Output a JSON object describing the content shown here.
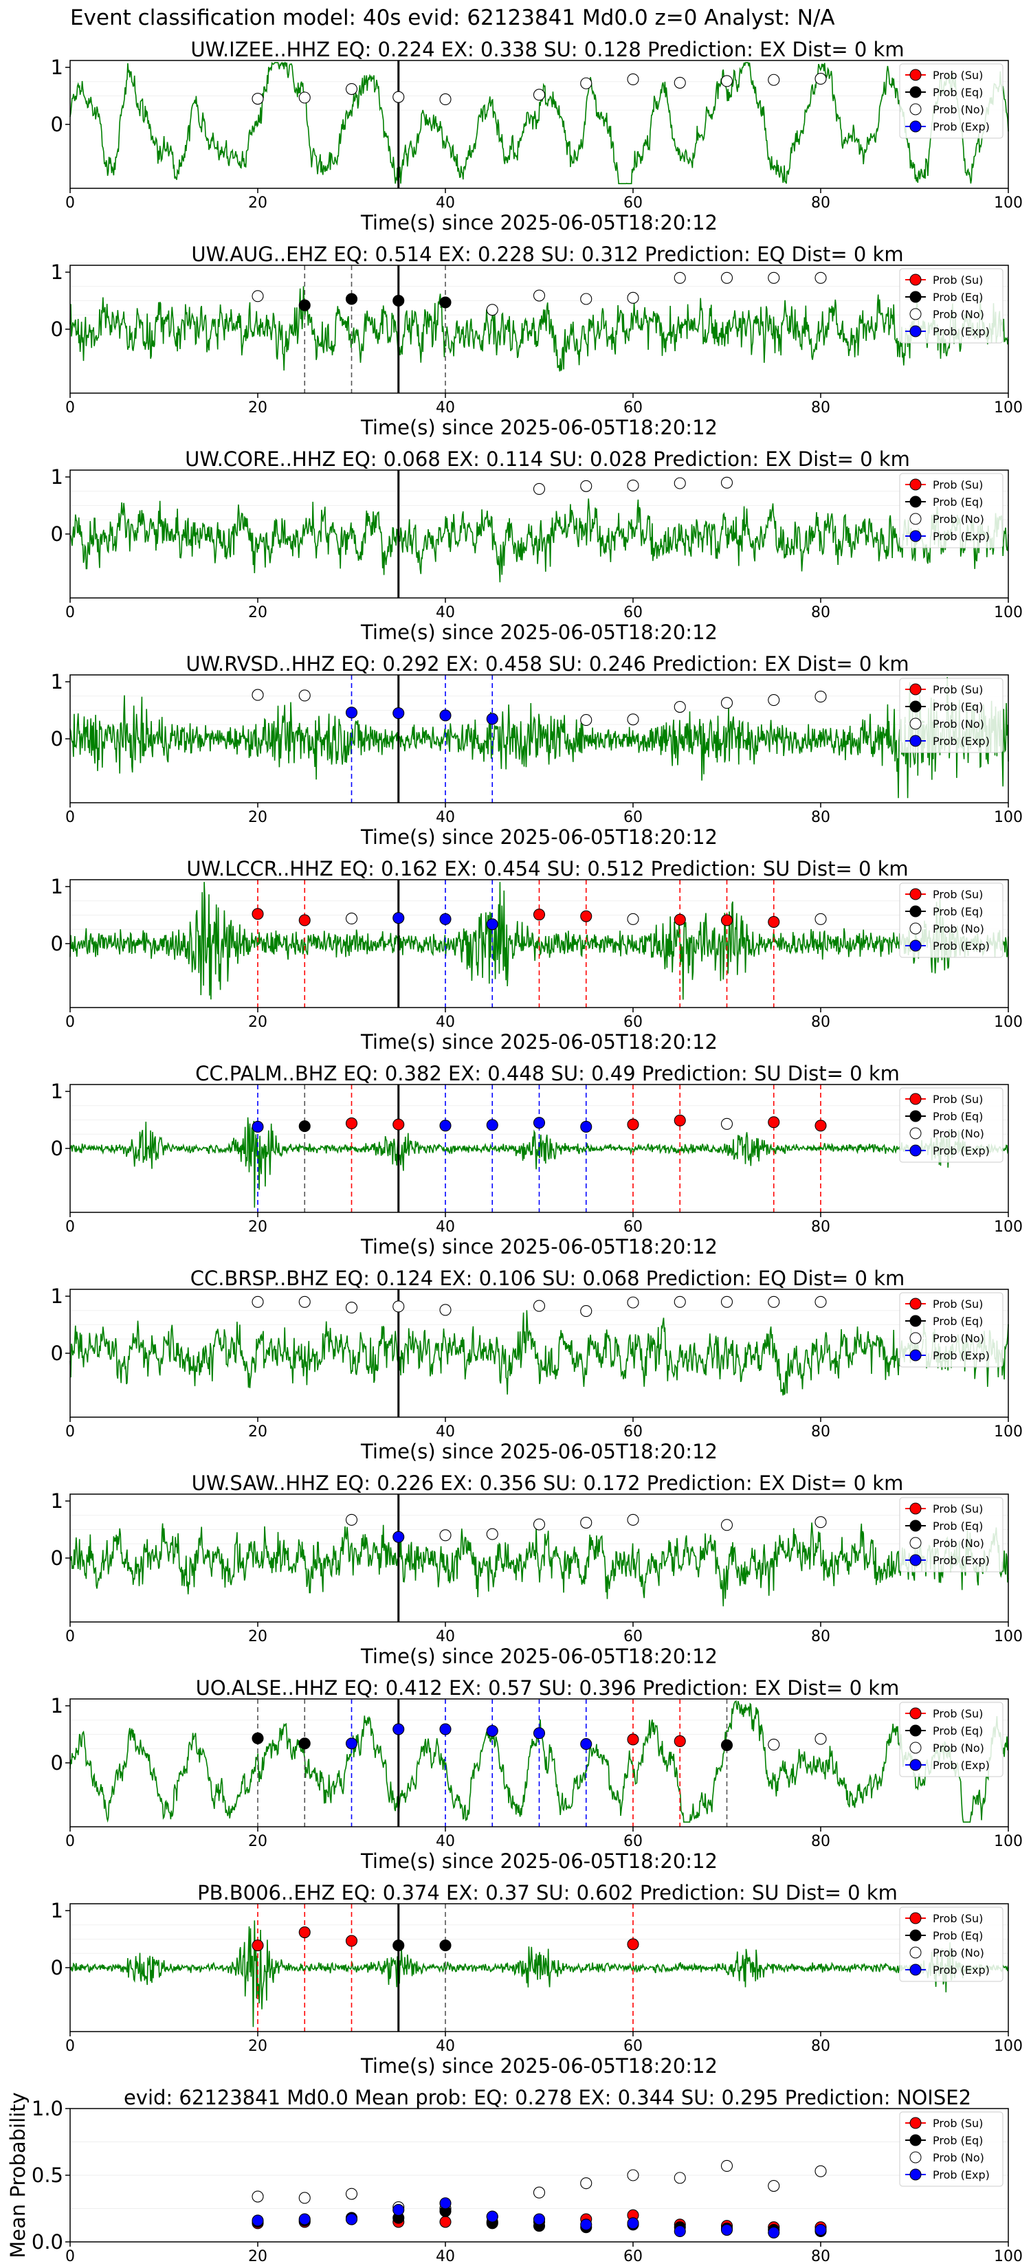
{
  "suptitle": "Event classification model: 40s evid: 62123841 Md0.0 z=0 Analyst: N/A",
  "legend_labels": [
    "Prob (Su)",
    "Prob (Eq)",
    "Prob (No)",
    "Prob (Exp)"
  ],
  "colors": {
    "trace": "#008000",
    "su": "#ff0000",
    "eq": "#000000",
    "no": "#ffffff",
    "exp": "#0000ff",
    "su_line": "#ff0000",
    "eq_line": "#555555",
    "exp_line": "#0000ff"
  },
  "chart_data": [
    {
      "type": "line",
      "title": "UW.IZEE..HHZ   EQ: 0.224  EX: 0.338  SU: 0.128   Prediction: EX    Dist= 0 km",
      "xlabel": "Time(s) since 2025-06-05T18:20:12",
      "xlim": [
        0,
        100
      ],
      "yticks": [
        "1",
        "0"
      ],
      "xticks": [
        "0",
        "20",
        "40",
        "60",
        "80",
        "100"
      ],
      "waveform": "long-period",
      "arrival_s": 35,
      "points": [
        {
          "x": 20,
          "y": 0.45,
          "cls": "no"
        },
        {
          "x": 25,
          "y": 0.47,
          "cls": "no"
        },
        {
          "x": 30,
          "y": 0.62,
          "cls": "no"
        },
        {
          "x": 35,
          "y": 0.48,
          "cls": "no"
        },
        {
          "x": 40,
          "y": 0.44,
          "cls": "no"
        },
        {
          "x": 50,
          "y": 0.52,
          "cls": "no"
        },
        {
          "x": 55,
          "y": 0.72,
          "cls": "no"
        },
        {
          "x": 60,
          "y": 0.79,
          "cls": "no"
        },
        {
          "x": 65,
          "y": 0.73,
          "cls": "no"
        },
        {
          "x": 70,
          "y": 0.76,
          "cls": "no"
        },
        {
          "x": 75,
          "y": 0.78,
          "cls": "no"
        },
        {
          "x": 80,
          "y": 0.8,
          "cls": "no"
        }
      ]
    },
    {
      "type": "line",
      "title": "UW.AUG..EHZ   EQ: 0.514  EX: 0.228  SU: 0.312   Prediction: EQ    Dist= 0 km",
      "xlabel": "Time(s) since 2025-06-05T18:20:12",
      "xlim": [
        0,
        100
      ],
      "yticks": [
        "1",
        "0"
      ],
      "xticks": [
        "0",
        "20",
        "40",
        "60",
        "80",
        "100"
      ],
      "waveform": "noisy",
      "arrival_s": 35,
      "points": [
        {
          "x": 20,
          "y": 0.58,
          "cls": "no"
        },
        {
          "x": 25,
          "y": 0.42,
          "cls": "eq"
        },
        {
          "x": 30,
          "y": 0.53,
          "cls": "eq"
        },
        {
          "x": 35,
          "y": 0.5,
          "cls": "eq"
        },
        {
          "x": 40,
          "y": 0.47,
          "cls": "eq"
        },
        {
          "x": 45,
          "y": 0.34,
          "cls": "no"
        },
        {
          "x": 50,
          "y": 0.59,
          "cls": "no"
        },
        {
          "x": 55,
          "y": 0.53,
          "cls": "no"
        },
        {
          "x": 60,
          "y": 0.55,
          "cls": "no"
        },
        {
          "x": 65,
          "y": 0.9,
          "cls": "no"
        },
        {
          "x": 70,
          "y": 0.9,
          "cls": "no"
        },
        {
          "x": 75,
          "y": 0.9,
          "cls": "no"
        },
        {
          "x": 80,
          "y": 0.9,
          "cls": "no"
        }
      ]
    },
    {
      "type": "line",
      "title": "UW.CORE..HHZ   EQ: 0.068  EX: 0.114  SU: 0.028   Prediction: EX    Dist= 0 km",
      "xlabel": "Time(s) since 2025-06-05T18:20:12",
      "xlim": [
        0,
        100
      ],
      "yticks": [
        "1",
        "0"
      ],
      "xticks": [
        "0",
        "20",
        "40",
        "60",
        "80",
        "100"
      ],
      "waveform": "noisy",
      "arrival_s": 35,
      "points": [
        {
          "x": 50,
          "y": 0.79,
          "cls": "no"
        },
        {
          "x": 55,
          "y": 0.84,
          "cls": "no"
        },
        {
          "x": 60,
          "y": 0.85,
          "cls": "no"
        },
        {
          "x": 65,
          "y": 0.89,
          "cls": "no"
        },
        {
          "x": 70,
          "y": 0.9,
          "cls": "no"
        }
      ]
    },
    {
      "type": "line",
      "title": "UW.RVSD..HHZ   EQ: 0.292  EX: 0.458  SU: 0.246   Prediction: EX    Dist= 0 km",
      "xlabel": "Time(s) since 2025-06-05T18:20:12",
      "xlim": [
        0,
        100
      ],
      "yticks": [
        "1",
        "0"
      ],
      "xticks": [
        "0",
        "20",
        "40",
        "60",
        "80",
        "100"
      ],
      "waveform": "dense",
      "arrival_s": 35,
      "points": [
        {
          "x": 20,
          "y": 0.77,
          "cls": "no"
        },
        {
          "x": 25,
          "y": 0.76,
          "cls": "no"
        },
        {
          "x": 30,
          "y": 0.46,
          "cls": "exp"
        },
        {
          "x": 35,
          "y": 0.45,
          "cls": "exp"
        },
        {
          "x": 40,
          "y": 0.41,
          "cls": "exp"
        },
        {
          "x": 45,
          "y": 0.35,
          "cls": "exp"
        },
        {
          "x": 55,
          "y": 0.33,
          "cls": "no"
        },
        {
          "x": 60,
          "y": 0.34,
          "cls": "no"
        },
        {
          "x": 65,
          "y": 0.56,
          "cls": "no"
        },
        {
          "x": 70,
          "y": 0.63,
          "cls": "no"
        },
        {
          "x": 75,
          "y": 0.68,
          "cls": "no"
        },
        {
          "x": 80,
          "y": 0.74,
          "cls": "no"
        }
      ]
    },
    {
      "type": "line",
      "title": "UW.LCCR..HHZ   EQ: 0.162  EX: 0.454  SU: 0.512   Prediction: SU    Dist= 0 km",
      "xlabel": "Time(s) since 2025-06-05T18:20:12",
      "xlim": [
        0,
        100
      ],
      "yticks": [
        "1",
        "0"
      ],
      "xticks": [
        "0",
        "20",
        "40",
        "60",
        "80",
        "100"
      ],
      "waveform": "bursty",
      "arrival_s": 35,
      "points": [
        {
          "x": 20,
          "y": 0.52,
          "cls": "su"
        },
        {
          "x": 25,
          "y": 0.41,
          "cls": "su"
        },
        {
          "x": 30,
          "y": 0.44,
          "cls": "no"
        },
        {
          "x": 35,
          "y": 0.45,
          "cls": "exp"
        },
        {
          "x": 40,
          "y": 0.43,
          "cls": "exp"
        },
        {
          "x": 45,
          "y": 0.34,
          "cls": "exp"
        },
        {
          "x": 50,
          "y": 0.51,
          "cls": "su"
        },
        {
          "x": 55,
          "y": 0.48,
          "cls": "su"
        },
        {
          "x": 60,
          "y": 0.43,
          "cls": "no"
        },
        {
          "x": 65,
          "y": 0.42,
          "cls": "su"
        },
        {
          "x": 70,
          "y": 0.41,
          "cls": "su"
        },
        {
          "x": 75,
          "y": 0.38,
          "cls": "su"
        },
        {
          "x": 80,
          "y": 0.43,
          "cls": "no"
        }
      ]
    },
    {
      "type": "line",
      "title": "CC.PALM..BHZ   EQ: 0.382  EX: 0.448  SU: 0.49   Prediction: SU    Dist= 0 km",
      "xlabel": "Time(s) since 2025-06-05T18:20:12",
      "xlim": [
        0,
        100
      ],
      "yticks": [
        "1",
        "0"
      ],
      "xticks": [
        "0",
        "20",
        "40",
        "60",
        "80",
        "100"
      ],
      "waveform": "quiet",
      "arrival_s": 35,
      "points": [
        {
          "x": 20,
          "y": 0.38,
          "cls": "exp"
        },
        {
          "x": 25,
          "y": 0.39,
          "cls": "eq"
        },
        {
          "x": 30,
          "y": 0.44,
          "cls": "su"
        },
        {
          "x": 35,
          "y": 0.42,
          "cls": "su"
        },
        {
          "x": 40,
          "y": 0.4,
          "cls": "exp"
        },
        {
          "x": 45,
          "y": 0.41,
          "cls": "exp"
        },
        {
          "x": 50,
          "y": 0.45,
          "cls": "exp"
        },
        {
          "x": 55,
          "y": 0.38,
          "cls": "exp"
        },
        {
          "x": 60,
          "y": 0.42,
          "cls": "su"
        },
        {
          "x": 65,
          "y": 0.49,
          "cls": "su"
        },
        {
          "x": 70,
          "y": 0.43,
          "cls": "no"
        },
        {
          "x": 75,
          "y": 0.46,
          "cls": "su"
        },
        {
          "x": 80,
          "y": 0.4,
          "cls": "su"
        }
      ]
    },
    {
      "type": "line",
      "title": "CC.BRSP..BHZ   EQ: 0.124  EX: 0.106  SU: 0.068   Prediction: EQ    Dist= 0 km",
      "xlabel": "Time(s) since 2025-06-05T18:20:12",
      "xlim": [
        0,
        100
      ],
      "yticks": [
        "1",
        "0"
      ],
      "xticks": [
        "0",
        "20",
        "40",
        "60",
        "80",
        "100"
      ],
      "waveform": "noisy",
      "arrival_s": 35,
      "points": [
        {
          "x": 20,
          "y": 0.9,
          "cls": "no"
        },
        {
          "x": 25,
          "y": 0.9,
          "cls": "no"
        },
        {
          "x": 30,
          "y": 0.8,
          "cls": "no"
        },
        {
          "x": 35,
          "y": 0.82,
          "cls": "no"
        },
        {
          "x": 40,
          "y": 0.76,
          "cls": "no"
        },
        {
          "x": 50,
          "y": 0.83,
          "cls": "no"
        },
        {
          "x": 55,
          "y": 0.74,
          "cls": "no"
        },
        {
          "x": 60,
          "y": 0.89,
          "cls": "no"
        },
        {
          "x": 65,
          "y": 0.9,
          "cls": "no"
        },
        {
          "x": 70,
          "y": 0.9,
          "cls": "no"
        },
        {
          "x": 75,
          "y": 0.9,
          "cls": "no"
        },
        {
          "x": 80,
          "y": 0.9,
          "cls": "no"
        }
      ]
    },
    {
      "type": "line",
      "title": "UW.SAW..HHZ   EQ: 0.226  EX: 0.356  SU: 0.172   Prediction: EX    Dist= 0 km",
      "xlabel": "Time(s) since 2025-06-05T18:20:12",
      "xlim": [
        0,
        100
      ],
      "yticks": [
        "1",
        "0"
      ],
      "xticks": [
        "0",
        "20",
        "40",
        "60",
        "80",
        "100"
      ],
      "waveform": "noisy",
      "arrival_s": 35,
      "points": [
        {
          "x": 30,
          "y": 0.67,
          "cls": "no"
        },
        {
          "x": 35,
          "y": 0.37,
          "cls": "exp"
        },
        {
          "x": 40,
          "y": 0.4,
          "cls": "no"
        },
        {
          "x": 45,
          "y": 0.42,
          "cls": "no"
        },
        {
          "x": 50,
          "y": 0.59,
          "cls": "no"
        },
        {
          "x": 55,
          "y": 0.62,
          "cls": "no"
        },
        {
          "x": 60,
          "y": 0.67,
          "cls": "no"
        },
        {
          "x": 70,
          "y": 0.58,
          "cls": "no"
        },
        {
          "x": 80,
          "y": 0.63,
          "cls": "no"
        }
      ]
    },
    {
      "type": "line",
      "title": "UO.ALSE..HHZ   EQ: 0.412  EX: 0.57  SU: 0.396   Prediction: EX    Dist= 0 km",
      "xlabel": "Time(s) since 2025-06-05T18:20:12",
      "xlim": [
        0,
        100
      ],
      "yticks": [
        "1",
        "0"
      ],
      "xticks": [
        "0",
        "20",
        "40",
        "60",
        "80",
        "100"
      ],
      "waveform": "long-period",
      "arrival_s": 35,
      "points": [
        {
          "x": 20,
          "y": 0.43,
          "cls": "eq"
        },
        {
          "x": 25,
          "y": 0.34,
          "cls": "eq"
        },
        {
          "x": 30,
          "y": 0.34,
          "cls": "exp"
        },
        {
          "x": 35,
          "y": 0.59,
          "cls": "exp"
        },
        {
          "x": 40,
          "y": 0.59,
          "cls": "exp"
        },
        {
          "x": 45,
          "y": 0.56,
          "cls": "exp"
        },
        {
          "x": 50,
          "y": 0.52,
          "cls": "exp"
        },
        {
          "x": 55,
          "y": 0.33,
          "cls": "exp"
        },
        {
          "x": 60,
          "y": 0.41,
          "cls": "su"
        },
        {
          "x": 65,
          "y": 0.38,
          "cls": "su"
        },
        {
          "x": 70,
          "y": 0.31,
          "cls": "eq"
        },
        {
          "x": 75,
          "y": 0.32,
          "cls": "no"
        },
        {
          "x": 80,
          "y": 0.42,
          "cls": "no"
        }
      ]
    },
    {
      "type": "line",
      "title": "PB.B006..EHZ   EQ: 0.374  EX: 0.37  SU: 0.602   Prediction: SU    Dist= 0 km",
      "xlabel": "Time(s) since 2025-06-05T18:20:12",
      "xlim": [
        0,
        100
      ],
      "yticks": [
        "1",
        "0"
      ],
      "xticks": [
        "0",
        "20",
        "40",
        "60",
        "80",
        "100"
      ],
      "waveform": "quiet",
      "arrival_s": 35,
      "points": [
        {
          "x": 20,
          "y": 0.39,
          "cls": "su"
        },
        {
          "x": 25,
          "y": 0.62,
          "cls": "su"
        },
        {
          "x": 30,
          "y": 0.47,
          "cls": "su"
        },
        {
          "x": 35,
          "y": 0.39,
          "cls": "eq"
        },
        {
          "x": 40,
          "y": 0.39,
          "cls": "eq"
        },
        {
          "x": 60,
          "y": 0.41,
          "cls": "su"
        }
      ]
    },
    {
      "type": "scatter",
      "title": "evid: 62123841  Md0.0   Mean prob:   EQ: 0.278  EX: 0.344  SU: 0.295   Prediction: NOISE2",
      "ylabel": "Mean Probability",
      "xlim": [
        0,
        100
      ],
      "ylim": [
        0,
        1
      ],
      "yticks": [
        "1.0",
        "0.5",
        "0.0"
      ],
      "xticks": [
        "0",
        "20",
        "40",
        "60",
        "80",
        "100"
      ],
      "x": [
        20,
        25,
        30,
        35,
        40,
        45,
        50,
        55,
        60,
        65,
        70,
        75,
        80
      ],
      "series": [
        {
          "name": "Prob (No)",
          "cls": "no",
          "values": [
            0.34,
            0.33,
            0.36,
            0.26,
            0.25,
            0.19,
            0.37,
            0.44,
            0.5,
            0.48,
            0.57,
            0.42,
            0.53
          ]
        },
        {
          "name": "Prob (Su)",
          "cls": "su",
          "values": [
            0.14,
            0.15,
            0.17,
            0.15,
            0.15,
            0.15,
            0.15,
            0.17,
            0.2,
            0.13,
            0.12,
            0.11,
            0.11
          ]
        },
        {
          "name": "Prob (Eq)",
          "cls": "eq",
          "values": [
            0.15,
            0.16,
            0.18,
            0.18,
            0.23,
            0.14,
            0.12,
            0.11,
            0.13,
            0.11,
            0.1,
            0.09,
            0.08
          ]
        },
        {
          "name": "Prob (Exp)",
          "cls": "exp",
          "values": [
            0.16,
            0.17,
            0.17,
            0.24,
            0.29,
            0.19,
            0.17,
            0.13,
            0.14,
            0.08,
            0.09,
            0.07,
            0.09
          ]
        }
      ]
    }
  ]
}
